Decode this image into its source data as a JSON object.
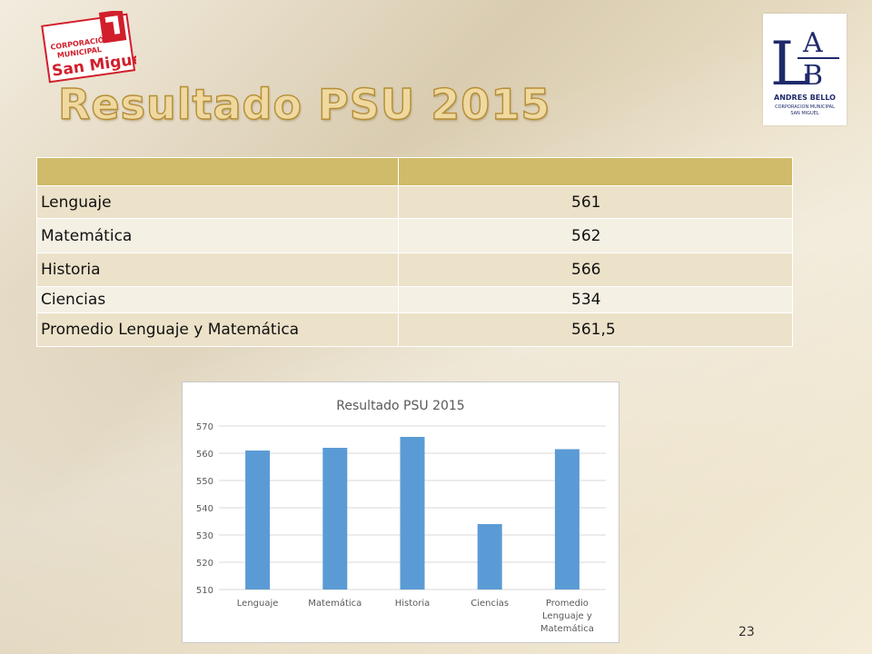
{
  "logos": {
    "left_text": [
      "CORPORACIÓN",
      "MUNICIPAL",
      "San Miguel"
    ],
    "right_letters": [
      "L",
      "A",
      "B"
    ],
    "right_text": [
      "ANDRES BELLO",
      "CORPORACION MUNICIPAL",
      "SAN MIGUEL"
    ]
  },
  "slide_title": "Resultado PSU 2015",
  "table": {
    "header": [
      "",
      ""
    ],
    "rows": [
      {
        "label": "Lenguaje",
        "value": "561"
      },
      {
        "label": "Matemática",
        "value": "562"
      },
      {
        "label": "Historia",
        "value": "566"
      },
      {
        "label": "Ciencias",
        "value": "534"
      },
      {
        "label": "Promedio Lenguaje y Matemática",
        "value": "561,5"
      }
    ]
  },
  "chart_data": {
    "type": "bar",
    "title": "Resultado PSU 2015",
    "categories": [
      "Lenguaje",
      "Matemática",
      "Historia",
      "Ciencias",
      "Promedio Lenguaje y Matemática"
    ],
    "category_lines": [
      [
        "Lenguaje"
      ],
      [
        "Matemática"
      ],
      [
        "Historia"
      ],
      [
        "Ciencias"
      ],
      [
        "Promedio",
        "Lenguaje y",
        "Matemática"
      ]
    ],
    "values": [
      561,
      562,
      566,
      534,
      561.5
    ],
    "ylim": [
      510,
      570
    ],
    "yticks": [
      510,
      520,
      530,
      540,
      550,
      560,
      570
    ],
    "grid": true,
    "legend": "none",
    "bar_color": "#5b9bd5"
  },
  "page_number": "23"
}
